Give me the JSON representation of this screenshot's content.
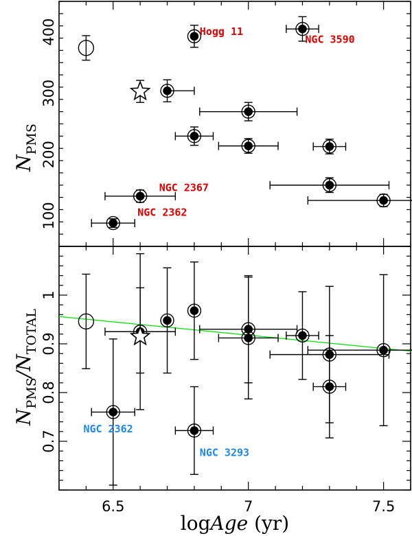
{
  "chart_data": [
    {
      "type": "scatter",
      "panel": "top",
      "xlabel": "logAge (yr)",
      "ylabel": "N_PMS",
      "ylabel_main": "N",
      "ylabel_sub": "PMS",
      "xlim": [
        6.3,
        7.6
      ],
      "ylim": [
        50,
        450
      ],
      "yticks": [
        100,
        200,
        300,
        400
      ],
      "ytick_labels": [
        "100",
        "200",
        "300",
        "400"
      ],
      "series": [
        {
          "name": "clusters",
          "marker": "dot-in-circle",
          "points": [
            {
              "x": 6.5,
              "y": 88,
              "xerr": [
                0.08,
                0.08
              ],
              "yerr": [
                7,
                7
              ]
            },
            {
              "x": 6.6,
              "y": 132,
              "xerr": [
                0.13,
                0.13
              ],
              "yerr": [
                10,
                10
              ]
            },
            {
              "x": 6.7,
              "y": 304,
              "xerr": [
                0.0,
                0.1
              ],
              "yerr": [
                18,
                18
              ]
            },
            {
              "x": 6.8,
              "y": 393,
              "xerr": [
                0.0,
                0.0
              ],
              "yerr": [
                18,
                18
              ]
            },
            {
              "x": 6.8,
              "y": 230,
              "xerr": [
                0.07,
                0.07
              ],
              "yerr": [
                15,
                15
              ]
            },
            {
              "x": 7.0,
              "y": 270,
              "xerr": [
                0.18,
                0.18
              ],
              "yerr": [
                15,
                15
              ]
            },
            {
              "x": 7.0,
              "y": 214,
              "xerr": [
                0.11,
                0.11
              ],
              "yerr": [
                12,
                12
              ]
            },
            {
              "x": 7.2,
              "y": 405,
              "xerr": [
                0.06,
                0.06
              ],
              "yerr": [
                20,
                20
              ]
            },
            {
              "x": 7.3,
              "y": 213,
              "xerr": [
                0.06,
                0.06
              ],
              "yerr": [
                12,
                12
              ]
            },
            {
              "x": 7.3,
              "y": 150,
              "xerr": [
                0.22,
                0.22
              ],
              "yerr": [
                12,
                12
              ]
            },
            {
              "x": 7.5,
              "y": 125,
              "xerr": [
                0.28,
                0.28
              ],
              "yerr": [
                10,
                10
              ]
            }
          ]
        },
        {
          "name": "open circle",
          "marker": "crossed-circle",
          "points": [
            {
              "x": 6.4,
              "y": 374,
              "xerr": [
                0,
                0
              ],
              "yerr": [
                20,
                20
              ]
            }
          ]
        },
        {
          "name": "star",
          "marker": "star",
          "points": [
            {
              "x": 6.6,
              "y": 303,
              "xerr": [
                0,
                0
              ],
              "yerr": [
                18,
                18
              ]
            }
          ]
        }
      ],
      "annotations": [
        {
          "text": "Hogg 11",
          "x": 6.82,
          "y": 395,
          "color": "#dd0000"
        },
        {
          "text": "NGC 3590",
          "x": 7.21,
          "y": 382,
          "color": "#dd0000"
        },
        {
          "text": "NGC 2367",
          "x": 6.67,
          "y": 140,
          "color": "#dd0000"
        },
        {
          "text": "NGC 2362",
          "x": 6.59,
          "y": 100,
          "color": "#dd0000"
        }
      ]
    },
    {
      "type": "scatter",
      "panel": "bottom",
      "xlabel": "logAge (yr)",
      "ylabel": "N_PMS/N_TOTAL",
      "ylabel_main1": "N",
      "ylabel_sub1": "PMS",
      "ylabel_main2": "/N",
      "ylabel_sub2": "TOTAL",
      "xlim": [
        6.3,
        7.6
      ],
      "ylim": [
        0.6,
        1.1
      ],
      "xticks": [
        6.5,
        7,
        7.5
      ],
      "xtick_labels": [
        "6.5",
        "7",
        "7.5"
      ],
      "yticks": [
        0.7,
        0.8,
        0.9,
        1.0
      ],
      "ytick_labels": [
        "0.7",
        "0.8",
        "0.9",
        "1"
      ],
      "series": [
        {
          "name": "clusters",
          "marker": "dot-in-circle",
          "points": [
            {
              "x": 6.5,
              "y": 0.76,
              "xerr": [
                0.08,
                0.08
              ],
              "yerr": [
                0.15,
                0.15
              ]
            },
            {
              "x": 6.6,
              "y": 0.925,
              "xerr": [
                0.13,
                0.13
              ],
              "yerr": [
                0.085,
                0.16
              ]
            },
            {
              "x": 6.7,
              "y": 0.948,
              "xerr": [
                0,
                0
              ],
              "yerr": [
                0.108,
                0.108
              ]
            },
            {
              "x": 6.8,
              "y": 0.968,
              "xerr": [
                0,
                0
              ],
              "yerr": [
                0.1,
                0.1
              ]
            },
            {
              "x": 6.8,
              "y": 0.722,
              "xerr": [
                0.07,
                0.07
              ],
              "yerr": [
                0.09,
                0.09
              ]
            },
            {
              "x": 7.0,
              "y": 0.93,
              "xerr": [
                0.18,
                0.18
              ],
              "yerr": [
                0.11,
                0.11
              ]
            },
            {
              "x": 7.0,
              "y": 0.912,
              "xerr": [
                0.11,
                0.11
              ],
              "yerr": [
                0.125,
                0.125
              ]
            },
            {
              "x": 7.2,
              "y": 0.917,
              "xerr": [
                0.06,
                0.06
              ],
              "yerr": [
                0.09,
                0.09
              ]
            },
            {
              "x": 7.3,
              "y": 0.878,
              "xerr": [
                0.22,
                0.22
              ],
              "yerr": [
                0.14,
                0.14
              ]
            },
            {
              "x": 7.3,
              "y": 0.812,
              "xerr": [
                0.06,
                0.06
              ],
              "yerr": [
                0.105,
                0.105
              ]
            },
            {
              "x": 7.5,
              "y": 0.887,
              "xerr": [
                0.28,
                0.28
              ],
              "yerr": [
                0.155,
                0.155
              ]
            }
          ]
        },
        {
          "name": "open circle",
          "marker": "circle",
          "points": [
            {
              "x": 6.4,
              "y": 0.946,
              "xerr": [
                0,
                0
              ],
              "yerr": [
                0.097,
                0.097
              ]
            }
          ]
        },
        {
          "name": "star",
          "marker": "star",
          "points": [
            {
              "x": 6.6,
              "y": 0.915,
              "xerr": [
                0,
                0
              ],
              "yerr": [
                0.15,
                0.1
              ]
            }
          ]
        }
      ],
      "fit_line": {
        "x": [
          6.3,
          7.6
        ],
        "y": [
          0.956,
          0.885
        ],
        "color": "#00dd00"
      },
      "annotations": [
        {
          "text": "NGC 2362",
          "x": 6.39,
          "y": 0.718,
          "color": "#1e88e5"
        },
        {
          "text": "NGC 3293",
          "x": 6.82,
          "y": 0.67,
          "color": "#1e88e5"
        }
      ]
    }
  ]
}
